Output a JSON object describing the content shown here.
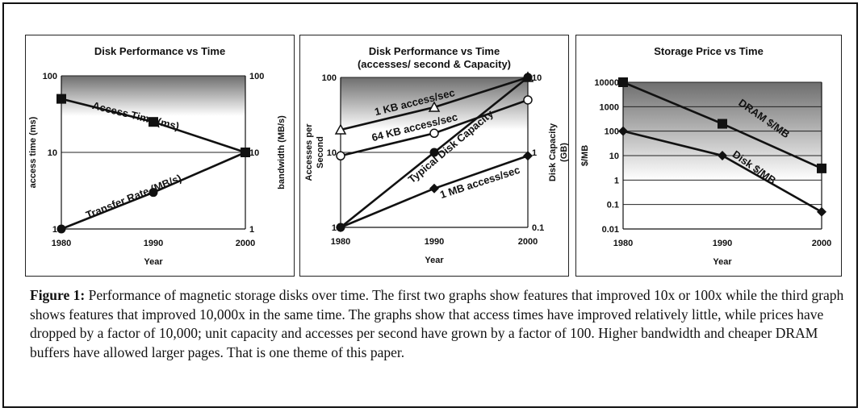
{
  "caption": {
    "label": "Figure 1:",
    "text": "Performance of magnetic storage disks over time. The first two graphs show features that improved 10x or 100x while the third graph shows features that improved 10,000x in the same time.   The graphs show that access times have improved relatively little, while prices have dropped by a factor of 10,000; unit capacity and accesses per second have grown by a factor of 100.  Higher bandwidth and cheaper DRAM buffers have allowed larger pages.  That is one theme of this paper."
  },
  "chart_data": [
    {
      "type": "line",
      "title": "Disk Performance vs Time",
      "xlabel": "Year",
      "ylabel": "access time (ms)",
      "y2label": "bandwidth (MB/s)",
      "x": [
        1980,
        1990,
        2000
      ],
      "xlim": [
        1980,
        2000
      ],
      "ylim": [
        1,
        100
      ],
      "yscale": "log",
      "yticks": [
        1,
        10,
        100
      ],
      "yticklabels": [
        "1",
        "10",
        "100"
      ],
      "y2ticklabels": [
        "1",
        "10",
        "100"
      ],
      "xticklabels": [
        "1980",
        "1990",
        "2000"
      ],
      "gradient": [
        30,
        100
      ],
      "series": [
        {
          "name": "Access Time (ms)",
          "values": [
            50,
            25,
            10
          ],
          "marker": "square",
          "label_angle": 14,
          "label_pos": [
            1988,
            27
          ]
        },
        {
          "name": "Transfer Rate (MB/s)",
          "values": [
            1,
            3,
            10
          ],
          "marker": "circle",
          "label_angle": -22,
          "label_pos": [
            1988,
            2.4
          ]
        }
      ]
    },
    {
      "type": "line",
      "title": "Disk Performance vs Time",
      "subtitle": "(accesses/ second & Capacity)",
      "xlabel": "Year",
      "ylabel": "Accesses per Second",
      "y2label": "Disk Capacity (GB)",
      "x": [
        1980,
        1990,
        2000
      ],
      "xlim": [
        1980,
        2000
      ],
      "ylim": [
        1,
        100
      ],
      "yscale": "log",
      "yticks": [
        1,
        10,
        100
      ],
      "yticklabels": [
        "1",
        "10",
        "100"
      ],
      "y2ticklabels": [
        "0.1",
        "1",
        "10"
      ],
      "xticklabels": [
        "1980",
        "1990",
        "2000"
      ],
      "gradient": [
        20,
        100
      ],
      "series": [
        {
          "name": "1 KB access/sec",
          "values": [
            20,
            40,
            100
          ],
          "marker": "triangle",
          "label_angle": -14,
          "label_pos": [
            1988,
            42
          ]
        },
        {
          "name": "64 KB access/sec",
          "values": [
            9,
            18,
            50
          ],
          "marker": "circle-open",
          "label_angle": -14,
          "label_pos": [
            1988,
            19.5
          ]
        },
        {
          "name": "Typical Disk Capacity",
          "values": [
            1,
            10,
            100
          ],
          "marker": "circle",
          "label_angle": -40,
          "label_pos": [
            1992,
            11
          ]
        },
        {
          "name": "1 MB access/sec",
          "values": [
            1,
            3.3,
            9
          ],
          "marker": "diamond",
          "label_angle": -18,
          "label_pos": [
            1995,
            3.6
          ]
        }
      ]
    },
    {
      "type": "line",
      "title": "Storage Price vs Time",
      "xlabel": "Year",
      "ylabel": "$/MB",
      "x": [
        1980,
        1990,
        2000
      ],
      "xlim": [
        1980,
        2000
      ],
      "ylim": [
        0.01,
        10000
      ],
      "yscale": "log",
      "yticks": [
        0.01,
        0.1,
        1,
        10,
        100,
        1000,
        10000
      ],
      "yticklabels": [
        "0.01",
        "0.1",
        "1",
        "10",
        "100",
        "1000",
        "10000"
      ],
      "xticklabels": [
        "1980",
        "1990",
        "2000"
      ],
      "gradient": [
        1,
        10000
      ],
      "series": [
        {
          "name": "DRAM $/MB",
          "values": [
            10000,
            200,
            3
          ],
          "marker": "square",
          "label_angle": 35,
          "label_pos": [
            1994,
            250
          ]
        },
        {
          "name": "Disk $/MB",
          "values": [
            100,
            10,
            0.05
          ],
          "marker": "diamond",
          "label_angle": 35,
          "label_pos": [
            1993,
            2.5
          ]
        }
      ]
    }
  ]
}
